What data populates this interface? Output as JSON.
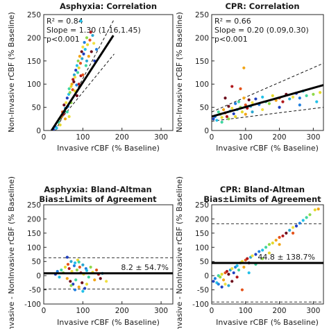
{
  "chart_data": [
    {
      "type": "scatter",
      "title": "Asphyxia: Correlation",
      "xlabel": "Invasive rCBF (% Baseline)",
      "ylabel": "Non-Invasive rCBF (% Baseline)",
      "xlim": [
        0,
        330
      ],
      "ylim": [
        0,
        250
      ],
      "xticks": [
        0,
        100,
        200,
        300
      ],
      "yticks": [
        0,
        50,
        100,
        150,
        200,
        250
      ],
      "stats": [
        "R² = 0.84",
        "Slope = 1.30 (1.16,1.45)",
        "p<0.001"
      ],
      "fit_line": {
        "x": [
          20,
          178
        ],
        "y": [
          0,
          205
        ]
      },
      "ci_upper": {
        "x": [
          30,
          180
        ],
        "y": [
          0,
          240
        ]
      },
      "ci_lower": {
        "x": [
          20,
          180
        ],
        "y": [
          0,
          165
        ]
      },
      "points": [
        [
          25,
          2
        ],
        [
          30,
          8
        ],
        [
          33,
          5
        ],
        [
          38,
          18
        ],
        [
          40,
          25
        ],
        [
          42,
          12
        ],
        [
          45,
          30
        ],
        [
          48,
          40
        ],
        [
          50,
          35
        ],
        [
          52,
          55
        ],
        [
          55,
          48
        ],
        [
          57,
          60
        ],
        [
          60,
          70
        ],
        [
          62,
          52
        ],
        [
          64,
          78
        ],
        [
          65,
          90
        ],
        [
          67,
          82
        ],
        [
          70,
          95
        ],
        [
          72,
          100
        ],
        [
          74,
          88
        ],
        [
          75,
          110
        ],
        [
          77,
          105
        ],
        [
          78,
          120
        ],
        [
          80,
          115
        ],
        [
          82,
          130
        ],
        [
          84,
          98
        ],
        [
          85,
          140
        ],
        [
          87,
          125
        ],
        [
          88,
          150
        ],
        [
          90,
          135
        ],
        [
          92,
          160
        ],
        [
          94,
          145
        ],
        [
          95,
          118
        ],
        [
          97,
          170
        ],
        [
          98,
          155
        ],
        [
          100,
          180
        ],
        [
          102,
          165
        ],
        [
          104,
          190
        ],
        [
          106,
          175
        ],
        [
          108,
          140
        ],
        [
          110,
          200
        ],
        [
          112,
          185
        ],
        [
          115,
          160
        ],
        [
          118,
          195
        ],
        [
          120,
          212
        ],
        [
          122,
          170
        ],
        [
          125,
          205
        ],
        [
          128,
          188
        ],
        [
          130,
          150
        ],
        [
          135,
          175
        ],
        [
          95,
          236
        ],
        [
          60,
          40
        ],
        [
          70,
          60
        ],
        [
          80,
          85
        ],
        [
          55,
          25
        ],
        [
          100,
          120
        ],
        [
          90,
          100
        ],
        [
          85,
          75
        ],
        [
          110,
          150
        ],
        [
          65,
          30
        ]
      ]
    },
    {
      "type": "scatter",
      "title": "CPR: Correlation",
      "xlabel": "Invasive rCBF (% Baseline)",
      "ylabel": "Non-Invasive rCBF (% Baseline)",
      "xlim": [
        0,
        330
      ],
      "ylim": [
        0,
        250
      ],
      "xticks": [
        0,
        100,
        200,
        300
      ],
      "yticks": [
        0,
        50,
        100,
        150,
        200,
        250
      ],
      "stats": [
        "R² = 0.66",
        "Slope = 0.20 (0.09,0.30)",
        "p<0.001"
      ],
      "fit_line": {
        "x": [
          0,
          330
        ],
        "y": [
          30,
          98
        ]
      },
      "ci_upper": {
        "x": [
          0,
          330
        ],
        "y": [
          40,
          145
        ]
      },
      "ci_lower": {
        "x": [
          0,
          330
        ],
        "y": [
          20,
          50
        ]
      },
      "points": [
        [
          5,
          25
        ],
        [
          10,
          30
        ],
        [
          15,
          22
        ],
        [
          20,
          40
        ],
        [
          25,
          35
        ],
        [
          30,
          28
        ],
        [
          35,
          45
        ],
        [
          40,
          38
        ],
        [
          45,
          30
        ],
        [
          50,
          52
        ],
        [
          55,
          42
        ],
        [
          60,
          48
        ],
        [
          65,
          36
        ],
        [
          70,
          58
        ],
        [
          75,
          45
        ],
        [
          80,
          62
        ],
        [
          85,
          50
        ],
        [
          90,
          40
        ],
        [
          95,
          70
        ],
        [
          100,
          55
        ],
        [
          105,
          48
        ],
        [
          110,
          66
        ],
        [
          115,
          52
        ],
        [
          120,
          60
        ],
        [
          130,
          68
        ],
        [
          140,
          56
        ],
        [
          150,
          72
        ],
        [
          160,
          62
        ],
        [
          170,
          58
        ],
        [
          180,
          75
        ],
        [
          190,
          65
        ],
        [
          200,
          70
        ],
        [
          210,
          62
        ],
        [
          220,
          78
        ],
        [
          230,
          68
        ],
        [
          240,
          72
        ],
        [
          250,
          80
        ],
        [
          260,
          70
        ],
        [
          270,
          85
        ],
        [
          280,
          75
        ],
        [
          300,
          78
        ],
        [
          320,
          82
        ],
        [
          95,
          135
        ],
        [
          85,
          90
        ],
        [
          60,
          95
        ],
        [
          40,
          70
        ],
        [
          120,
          40
        ],
        [
          150,
          45
        ],
        [
          200,
          50
        ],
        [
          260,
          55
        ],
        [
          310,
          62
        ],
        [
          30,
          18
        ],
        [
          50,
          25
        ],
        [
          70,
          30
        ],
        [
          100,
          35
        ]
      ]
    },
    {
      "type": "scatter",
      "title": "Asphyxia: Bland-Altman",
      "subtitle": "Bias±Limits of Agreement",
      "xlabel": "Invasive rCBF (% Baseline)",
      "ylabel": "Invasive - NonInvasive rCBF (% Baseline)",
      "xlim": [
        0,
        330
      ],
      "ylim": [
        -100,
        250
      ],
      "xticks": [
        0,
        100,
        200,
        300
      ],
      "yticks": [
        -100,
        -50,
        0,
        50,
        100,
        150,
        200,
        250
      ],
      "bias": 8.2,
      "limits": [
        63,
        -47
      ],
      "bias_label": "8.2 ± 54.7%",
      "points": [
        [
          30,
          5
        ],
        [
          35,
          15
        ],
        [
          40,
          -5
        ],
        [
          45,
          20
        ],
        [
          50,
          10
        ],
        [
          55,
          30
        ],
        [
          60,
          -10
        ],
        [
          62,
          40
        ],
        [
          65,
          25
        ],
        [
          68,
          -20
        ],
        [
          70,
          50
        ],
        [
          72,
          15
        ],
        [
          75,
          -30
        ],
        [
          78,
          35
        ],
        [
          80,
          45
        ],
        [
          82,
          -15
        ],
        [
          85,
          20
        ],
        [
          87,
          55
        ],
        [
          90,
          -40
        ],
        [
          92,
          30
        ],
        [
          95,
          10
        ],
        [
          98,
          -25
        ],
        [
          100,
          38
        ],
        [
          102,
          5
        ],
        [
          105,
          -45
        ],
        [
          108,
          25
        ],
        [
          110,
          18
        ],
        [
          115,
          -5
        ],
        [
          120,
          30
        ],
        [
          125,
          12
        ],
        [
          130,
          -15
        ],
        [
          135,
          20
        ],
        [
          140,
          5
        ],
        [
          145,
          -10
        ],
        [
          150,
          8
        ],
        [
          160,
          -20
        ],
        [
          60,
          65
        ],
        [
          80,
          -50
        ],
        [
          100,
          -55
        ],
        [
          90,
          48
        ],
        [
          70,
          -35
        ],
        [
          110,
          -30
        ]
      ]
    },
    {
      "type": "scatter",
      "title": "CPR: Bland-Altman",
      "subtitle": "Bias±Limits of Agreement",
      "xlabel": "Invasive rCBF (% Baseline)",
      "ylabel": "Invasive - NonInvasive rCBF (% Baseline)",
      "xlim": [
        0,
        330
      ],
      "ylim": [
        -100,
        250
      ],
      "xticks": [
        0,
        100,
        200,
        300
      ],
      "yticks": [
        -100,
        -50,
        0,
        50,
        100,
        150,
        200,
        250
      ],
      "bias": 44.8,
      "limits": [
        183,
        -93
      ],
      "bias_label": "44.8 ± 138.7%",
      "points": [
        [
          5,
          -20
        ],
        [
          10,
          -10
        ],
        [
          15,
          -25
        ],
        [
          20,
          0
        ],
        [
          25,
          -5
        ],
        [
          30,
          5
        ],
        [
          35,
          -15
        ],
        [
          40,
          10
        ],
        [
          45,
          15
        ],
        [
          50,
          5
        ],
        [
          55,
          20
        ],
        [
          60,
          25
        ],
        [
          65,
          10
        ],
        [
          70,
          30
        ],
        [
          75,
          35
        ],
        [
          80,
          20
        ],
        [
          85,
          45
        ],
        [
          90,
          50
        ],
        [
          95,
          30
        ],
        [
          100,
          55
        ],
        [
          105,
          60
        ],
        [
          110,
          45
        ],
        [
          115,
          65
        ],
        [
          120,
          70
        ],
        [
          130,
          75
        ],
        [
          140,
          85
        ],
        [
          150,
          90
        ],
        [
          160,
          100
        ],
        [
          170,
          110
        ],
        [
          180,
          115
        ],
        [
          190,
          125
        ],
        [
          200,
          135
        ],
        [
          210,
          140
        ],
        [
          220,
          150
        ],
        [
          230,
          160
        ],
        [
          240,
          170
        ],
        [
          250,
          175
        ],
        [
          260,
          185
        ],
        [
          270,
          195
        ],
        [
          280,
          205
        ],
        [
          290,
          215
        ],
        [
          305,
          232
        ],
        [
          315,
          235
        ],
        [
          90,
          -50
        ],
        [
          75,
          -5
        ],
        [
          60,
          -20
        ],
        [
          50,
          -35
        ],
        [
          40,
          -30
        ],
        [
          30,
          -40
        ],
        [
          20,
          -30
        ],
        [
          110,
          10
        ],
        [
          130,
          40
        ],
        [
          150,
          60
        ],
        [
          170,
          80
        ],
        [
          200,
          110
        ],
        [
          240,
          150
        ]
      ]
    }
  ]
}
